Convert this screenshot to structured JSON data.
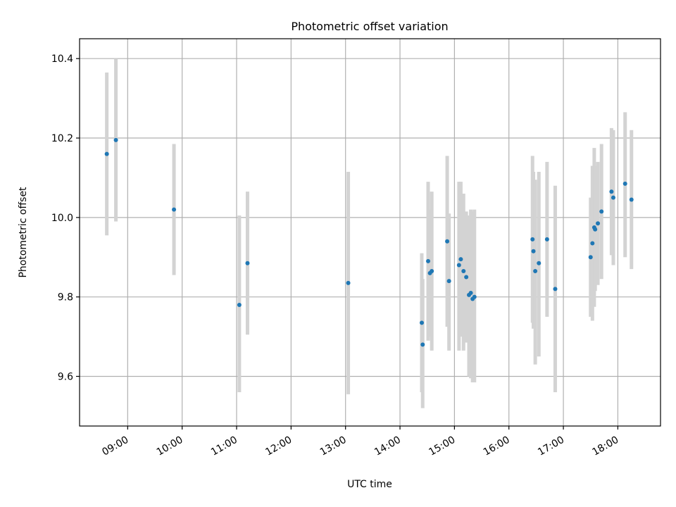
{
  "chart_data": {
    "type": "scatter",
    "title": "Photometric offset variation",
    "xlabel": "UTC time",
    "ylabel": "Photometric offset",
    "x_unit": "UTC hour of day",
    "xlim": [
      "08:07",
      "18:47"
    ],
    "ylim": [
      9.475,
      10.45
    ],
    "xticks": [
      "09:00",
      "10:00",
      "11:00",
      "12:00",
      "13:00",
      "14:00",
      "15:00",
      "16:00",
      "17:00",
      "18:00"
    ],
    "yticks": [
      9.6,
      9.8,
      10.0,
      10.2,
      10.4
    ],
    "grid": true,
    "colors": {
      "point": "#1f77b4",
      "errorbar": "#d3d3d3",
      "grid": "#b0b0b0"
    },
    "series": [
      {
        "points": [
          {
            "x": "08:37",
            "y": 10.16,
            "lo": 9.955,
            "hi": 10.365
          },
          {
            "x": "08:47",
            "y": 10.195,
            "lo": 9.99,
            "hi": 10.4
          },
          {
            "x": "09:51",
            "y": 10.02,
            "lo": 9.855,
            "hi": 10.185
          },
          {
            "x": "11:03",
            "y": 9.78,
            "lo": 9.56,
            "hi": 10.005
          },
          {
            "x": "11:12",
            "y": 9.885,
            "lo": 9.705,
            "hi": 10.065
          },
          {
            "x": "13:03",
            "y": 9.835,
            "lo": 9.555,
            "hi": 10.115
          },
          {
            "x": "14:24",
            "y": 9.735,
            "lo": 9.56,
            "hi": 9.91
          },
          {
            "x": "14:25",
            "y": 9.68,
            "lo": 9.52,
            "hi": 9.845
          },
          {
            "x": "14:31",
            "y": 9.89,
            "lo": 9.69,
            "hi": 10.09
          },
          {
            "x": "14:33",
            "y": 9.86,
            "lo": 9.7,
            "hi": 10.02
          },
          {
            "x": "14:35",
            "y": 9.865,
            "lo": 9.665,
            "hi": 10.065
          },
          {
            "x": "14:52",
            "y": 9.94,
            "lo": 9.725,
            "hi": 10.155
          },
          {
            "x": "14:54",
            "y": 9.84,
            "lo": 9.665,
            "hi": 10.01
          },
          {
            "x": "15:05",
            "y": 9.88,
            "lo": 9.665,
            "hi": 10.09
          },
          {
            "x": "15:07",
            "y": 9.895,
            "lo": 9.7,
            "hi": 10.09
          },
          {
            "x": "15:10",
            "y": 9.865,
            "lo": 9.665,
            "hi": 10.06
          },
          {
            "x": "15:13",
            "y": 9.85,
            "lo": 9.685,
            "hi": 10.015
          },
          {
            "x": "15:16",
            "y": 9.805,
            "lo": 9.6,
            "hi": 10.005
          },
          {
            "x": "15:18",
            "y": 9.81,
            "lo": 9.595,
            "hi": 10.02
          },
          {
            "x": "15:20",
            "y": 9.795,
            "lo": 9.585,
            "hi": 10.015
          },
          {
            "x": "15:22",
            "y": 9.8,
            "lo": 9.585,
            "hi": 10.02
          },
          {
            "x": "16:26",
            "y": 9.945,
            "lo": 9.735,
            "hi": 10.155
          },
          {
            "x": "16:27",
            "y": 9.915,
            "lo": 9.72,
            "hi": 10.115
          },
          {
            "x": "16:29",
            "y": 9.865,
            "lo": 9.63,
            "hi": 10.095
          },
          {
            "x": "16:33",
            "y": 9.885,
            "lo": 9.65,
            "hi": 10.115
          },
          {
            "x": "16:42",
            "y": 9.945,
            "lo": 9.75,
            "hi": 10.14
          },
          {
            "x": "16:51",
            "y": 9.82,
            "lo": 9.56,
            "hi": 10.08
          },
          {
            "x": "17:30",
            "y": 9.9,
            "lo": 9.75,
            "hi": 10.05
          },
          {
            "x": "17:32",
            "y": 9.935,
            "lo": 9.74,
            "hi": 10.13
          },
          {
            "x": "17:34",
            "y": 9.975,
            "lo": 9.775,
            "hi": 10.175
          },
          {
            "x": "17:35",
            "y": 9.97,
            "lo": 9.815,
            "hi": 10.13
          },
          {
            "x": "17:38",
            "y": 9.985,
            "lo": 9.83,
            "hi": 10.14
          },
          {
            "x": "17:42",
            "y": 10.015,
            "lo": 9.845,
            "hi": 10.185
          },
          {
            "x": "17:53",
            "y": 10.065,
            "lo": 9.905,
            "hi": 10.225
          },
          {
            "x": "17:55",
            "y": 10.05,
            "lo": 9.88,
            "hi": 10.22
          },
          {
            "x": "18:08",
            "y": 10.085,
            "lo": 9.9,
            "hi": 10.265
          },
          {
            "x": "18:15",
            "y": 10.045,
            "lo": 9.87,
            "hi": 10.22
          }
        ]
      }
    ]
  }
}
